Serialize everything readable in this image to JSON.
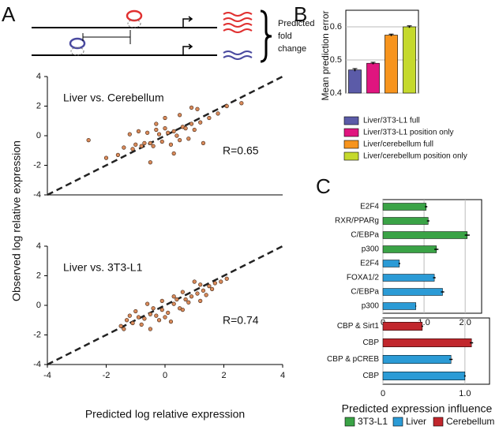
{
  "diagram": {
    "panel": "A",
    "label": [
      "Predicted",
      "fold",
      "change"
    ]
  },
  "chart_data": [
    {
      "type": "scatter",
      "title": "Liver vs. Cerebellum",
      "annotation": "R=0.65",
      "ylabel": "Observed log relative expression",
      "xlim": [
        -4,
        4
      ],
      "ylim": [
        -4,
        4
      ],
      "yticks": [
        -4,
        -2,
        0,
        2,
        4
      ],
      "color": "#d98a5a",
      "reference_line": "dashed",
      "x": [
        -1.2,
        -0.9,
        -0.6,
        -0.3,
        0,
        0.3,
        0.6,
        0.9,
        1.2,
        -1.0,
        -0.7,
        -0.4,
        -0.1,
        0.2,
        0.5,
        0.8,
        -1.4,
        -1.1,
        -0.8,
        -0.5,
        -0.2,
        0.1,
        0.4,
        0.7,
        1.0,
        1.5,
        1.8,
        2.1,
        -1.6,
        -2.0,
        0.0,
        0.5,
        1.1,
        -0.5,
        0.3,
        2.6,
        -2.6,
        1.3,
        0.9,
        -0.3
      ],
      "values": [
        0.1,
        0.3,
        0.2,
        0.4,
        0.5,
        0.3,
        0.6,
        0.8,
        0.9,
        -0.6,
        -0.5,
        -0.7,
        -0.4,
        -0.6,
        -0.3,
        -0.2,
        -0.8,
        -0.9,
        -0.7,
        -0.5,
        0.1,
        0.2,
        0.0,
        0.5,
        0.4,
        1.2,
        1.5,
        2.0,
        -1.3,
        -1.5,
        1.2,
        1.4,
        1.8,
        -1.8,
        -1.2,
        2.2,
        -0.3,
        -0.5,
        1.9,
        0.8
      ]
    },
    {
      "type": "scatter",
      "title": "Liver vs. 3T3-L1",
      "annotation": "R=0.74",
      "xlabel": "Predicted log relative expression",
      "xlim": [
        -4,
        4
      ],
      "ylim": [
        -4,
        4
      ],
      "xticks": [
        -4,
        -2,
        0,
        2,
        4
      ],
      "yticks": [
        -4,
        -2,
        0,
        2,
        4
      ],
      "color": "#d98a5a",
      "reference_line": "dashed",
      "x": [
        -1.5,
        -1.3,
        -1.1,
        -0.9,
        -0.7,
        -0.5,
        -0.3,
        -0.1,
        0.1,
        0.3,
        0.5,
        0.7,
        0.9,
        1.1,
        1.3,
        1.5,
        1.7,
        1.9,
        -1.2,
        -0.8,
        -0.4,
        0,
        0.4,
        0.8,
        1.2,
        1.6,
        -1,
        -0.6,
        -0.2,
        0.2,
        0.6,
        1.0,
        1.4,
        -0.5,
        0.3,
        1.2,
        2.1,
        -0.1,
        0.6,
        -1.4
      ],
      "values": [
        -1.4,
        -1.0,
        -1.2,
        -0.8,
        -0.9,
        -0.6,
        -0.7,
        -0.3,
        -0.5,
        0.1,
        -0.2,
        0.4,
        0.6,
        0.8,
        1.0,
        1.3,
        1.5,
        1.6,
        -0.7,
        -1.3,
        -0.2,
        -0.8,
        0.4,
        0.2,
        1.4,
        1.1,
        -0.4,
        0.1,
        -1.0,
        -1.1,
        0.9,
        1.6,
        0.7,
        -1.6,
        0.6,
        0.3,
        1.8,
        0.3,
        -0.3,
        -1.6
      ]
    },
    {
      "type": "bar",
      "panel": "B",
      "ylabel": "Mean prediction error",
      "categories": [
        "Liver/3T3-L1 full",
        "Liver/3T3-L1 position only",
        "Liver/cerebellum full",
        "Liver/cerebellum position only"
      ],
      "values": [
        0.47,
        0.49,
        0.575,
        0.6
      ],
      "errors": [
        0.004,
        0.003,
        0.003,
        0.003
      ],
      "colors": [
        "#5b5ba8",
        "#e0157f",
        "#f7941d",
        "#c5d92d"
      ],
      "ylim": [
        0.4,
        0.65
      ],
      "yticks": [
        0.4,
        0.5,
        0.6
      ],
      "grid": true
    },
    {
      "type": "hbar",
      "panel": "C",
      "categories": [
        "E2F4",
        "RXR/PPARg",
        "C/EBPa",
        "p300",
        "E2F4",
        "FOXA1/2",
        "C/EBPa",
        "p300"
      ],
      "values": [
        1.05,
        1.1,
        2.05,
        1.3,
        0.4,
        1.25,
        1.45,
        0.8
      ],
      "errors": [
        0.03,
        0.03,
        0.06,
        0.05,
        0.02,
        0.03,
        0.04,
        0.01
      ],
      "colors": [
        "#3aa346",
        "#3aa346",
        "#3aa346",
        "#3aa346",
        "#2b9bd6",
        "#2b9bd6",
        "#2b9bd6",
        "#2b9bd6"
      ],
      "xlim": [
        0,
        2.4
      ],
      "xticks": [
        0,
        {
          "value": 1,
          "label": "1.0"
        },
        {
          "value": 2,
          "label": "2.0"
        }
      ],
      "grid": true
    },
    {
      "type": "hbar",
      "xlabel": "Predicted expression influence",
      "categories": [
        "CBP & Sirt1",
        "CBP",
        "CBP & pCREB",
        "CBP"
      ],
      "values": [
        0.48,
        1.08,
        0.83,
        1.0
      ],
      "errors": [
        0.01,
        0.02,
        0.02,
        0.01
      ],
      "colors": [
        "#c1272d",
        "#c1272d",
        "#2b9bd6",
        "#2b9bd6"
      ],
      "xlim": [
        0,
        1.3
      ],
      "xticks": [
        0,
        {
          "value": 1,
          "label": "1.0"
        }
      ],
      "grid": true,
      "legend": [
        {
          "name": "3T3-L1",
          "color": "#3aa346"
        },
        {
          "name": "Liver",
          "color": "#2b9bd6"
        },
        {
          "name": "Cerebellum",
          "color": "#c1272d"
        }
      ]
    }
  ]
}
